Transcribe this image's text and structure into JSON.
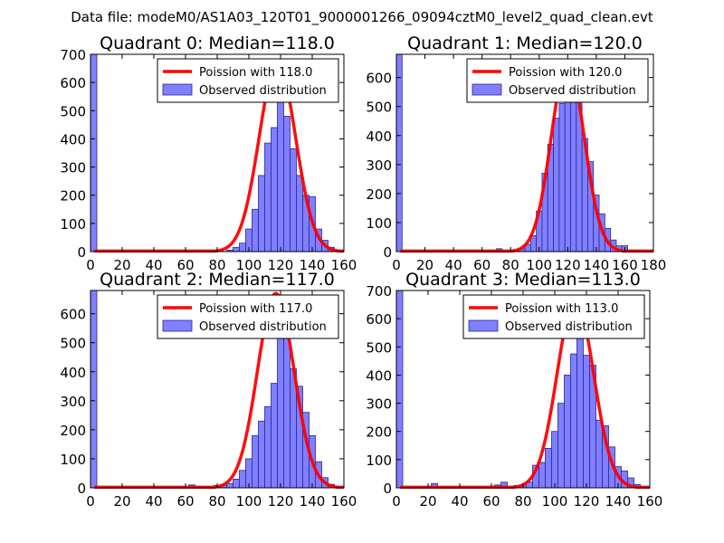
{
  "suptitle": "Data file: modeM0/AS1A03_120T01_9000001266_09094cztM0_level2_quad_clean.evt",
  "chart_data": [
    {
      "type": "bar",
      "title": "Quadrant 0: Median=118.0",
      "median": 118.0,
      "xlim": [
        0,
        160
      ],
      "ylim": [
        0,
        700
      ],
      "xticks": [
        0,
        20,
        40,
        60,
        80,
        100,
        120,
        140,
        160
      ],
      "yticks": [
        0,
        100,
        200,
        300,
        400,
        500,
        600,
        700
      ],
      "legend": {
        "line": "Poission with 118.0",
        "bars": "Observed distribution",
        "position": "upper right"
      },
      "bar_width": 4,
      "bars": [
        {
          "x": 0,
          "y": 700
        },
        {
          "x": 78,
          "y": 3
        },
        {
          "x": 86,
          "y": 5
        },
        {
          "x": 90,
          "y": 15
        },
        {
          "x": 94,
          "y": 30
        },
        {
          "x": 98,
          "y": 80
        },
        {
          "x": 102,
          "y": 150
        },
        {
          "x": 106,
          "y": 270
        },
        {
          "x": 110,
          "y": 385
        },
        {
          "x": 114,
          "y": 440
        },
        {
          "x": 118,
          "y": 560
        },
        {
          "x": 122,
          "y": 480
        },
        {
          "x": 126,
          "y": 365
        },
        {
          "x": 130,
          "y": 270
        },
        {
          "x": 134,
          "y": 200
        },
        {
          "x": 138,
          "y": 195
        },
        {
          "x": 142,
          "y": 80
        },
        {
          "x": 146,
          "y": 40
        },
        {
          "x": 150,
          "y": 15
        },
        {
          "x": 154,
          "y": 5
        }
      ],
      "curve_peak": 670,
      "curve_sigma": 11.5
    },
    {
      "type": "bar",
      "title": "Quadrant 1: Median=120.0",
      "median": 120.0,
      "xlim": [
        0,
        180
      ],
      "ylim": [
        0,
        680
      ],
      "xticks": [
        0,
        20,
        40,
        60,
        80,
        100,
        120,
        140,
        160,
        180
      ],
      "yticks": [
        0,
        100,
        200,
        300,
        400,
        500,
        600
      ],
      "legend": {
        "line": "Poission with 120.0",
        "bars": "Observed distribution",
        "position": "upper right"
      },
      "bar_width": 4,
      "bars": [
        {
          "x": 0,
          "y": 680
        },
        {
          "x": 70,
          "y": 10
        },
        {
          "x": 74,
          "y": 3
        },
        {
          "x": 82,
          "y": 5
        },
        {
          "x": 86,
          "y": 10
        },
        {
          "x": 90,
          "y": 25
        },
        {
          "x": 94,
          "y": 55
        },
        {
          "x": 98,
          "y": 140
        },
        {
          "x": 102,
          "y": 270
        },
        {
          "x": 106,
          "y": 370
        },
        {
          "x": 110,
          "y": 460
        },
        {
          "x": 114,
          "y": 510
        },
        {
          "x": 118,
          "y": 540
        },
        {
          "x": 122,
          "y": 640
        },
        {
          "x": 126,
          "y": 520
        },
        {
          "x": 130,
          "y": 390
        },
        {
          "x": 134,
          "y": 310
        },
        {
          "x": 138,
          "y": 195
        },
        {
          "x": 142,
          "y": 130
        },
        {
          "x": 146,
          "y": 80
        },
        {
          "x": 150,
          "y": 40
        },
        {
          "x": 154,
          "y": 20
        },
        {
          "x": 158,
          "y": 20
        },
        {
          "x": 162,
          "y": 5
        }
      ],
      "curve_peak": 655,
      "curve_sigma": 11.5
    },
    {
      "type": "bar",
      "title": "Quadrant 2: Median=117.0",
      "median": 117.0,
      "xlim": [
        0,
        160
      ],
      "ylim": [
        0,
        680
      ],
      "xticks": [
        0,
        20,
        40,
        60,
        80,
        100,
        120,
        140,
        160
      ],
      "yticks": [
        0,
        100,
        200,
        300,
        400,
        500,
        600
      ],
      "legend": {
        "line": "Poission with 117.0",
        "bars": "Observed distribution",
        "position": "upper right"
      },
      "bar_width": 4,
      "bars": [
        {
          "x": 0,
          "y": 680
        },
        {
          "x": 62,
          "y": 10
        },
        {
          "x": 66,
          "y": 5
        },
        {
          "x": 78,
          "y": 8
        },
        {
          "x": 82,
          "y": 10
        },
        {
          "x": 86,
          "y": 15
        },
        {
          "x": 90,
          "y": 30
        },
        {
          "x": 94,
          "y": 60
        },
        {
          "x": 98,
          "y": 100
        },
        {
          "x": 102,
          "y": 180
        },
        {
          "x": 106,
          "y": 230
        },
        {
          "x": 110,
          "y": 280
        },
        {
          "x": 114,
          "y": 360
        },
        {
          "x": 118,
          "y": 525
        },
        {
          "x": 122,
          "y": 525
        },
        {
          "x": 126,
          "y": 410
        },
        {
          "x": 130,
          "y": 350
        },
        {
          "x": 134,
          "y": 260
        },
        {
          "x": 138,
          "y": 180
        },
        {
          "x": 142,
          "y": 90
        },
        {
          "x": 146,
          "y": 35
        },
        {
          "x": 150,
          "y": 12
        },
        {
          "x": 154,
          "y": 5
        }
      ],
      "curve_peak": 670,
      "curve_sigma": 11.5
    },
    {
      "type": "bar",
      "title": "Quadrant 3: Median=113.0",
      "median": 113.0,
      "xlim": [
        0,
        160
      ],
      "ylim": [
        0,
        700
      ],
      "xticks": [
        0,
        20,
        40,
        60,
        80,
        100,
        120,
        140,
        160
      ],
      "yticks": [
        0,
        100,
        200,
        300,
        400,
        500,
        600,
        700
      ],
      "legend": {
        "line": "Poission with 113.0",
        "bars": "Observed distribution",
        "position": "upper right"
      },
      "bar_width": 4,
      "bars": [
        {
          "x": 0,
          "y": 700
        },
        {
          "x": 22,
          "y": 15
        },
        {
          "x": 62,
          "y": 10
        },
        {
          "x": 66,
          "y": 20
        },
        {
          "x": 74,
          "y": 8
        },
        {
          "x": 78,
          "y": 10
        },
        {
          "x": 82,
          "y": 20
        },
        {
          "x": 86,
          "y": 80
        },
        {
          "x": 90,
          "y": 90
        },
        {
          "x": 94,
          "y": 140
        },
        {
          "x": 98,
          "y": 200
        },
        {
          "x": 102,
          "y": 300
        },
        {
          "x": 106,
          "y": 400
        },
        {
          "x": 110,
          "y": 475
        },
        {
          "x": 114,
          "y": 570
        },
        {
          "x": 118,
          "y": 470
        },
        {
          "x": 122,
          "y": 435
        },
        {
          "x": 126,
          "y": 240
        },
        {
          "x": 130,
          "y": 220
        },
        {
          "x": 134,
          "y": 145
        },
        {
          "x": 138,
          "y": 75
        },
        {
          "x": 142,
          "y": 60
        },
        {
          "x": 146,
          "y": 35
        },
        {
          "x": 150,
          "y": 12
        }
      ],
      "curve_peak": 670,
      "curve_sigma": 11.5
    }
  ]
}
